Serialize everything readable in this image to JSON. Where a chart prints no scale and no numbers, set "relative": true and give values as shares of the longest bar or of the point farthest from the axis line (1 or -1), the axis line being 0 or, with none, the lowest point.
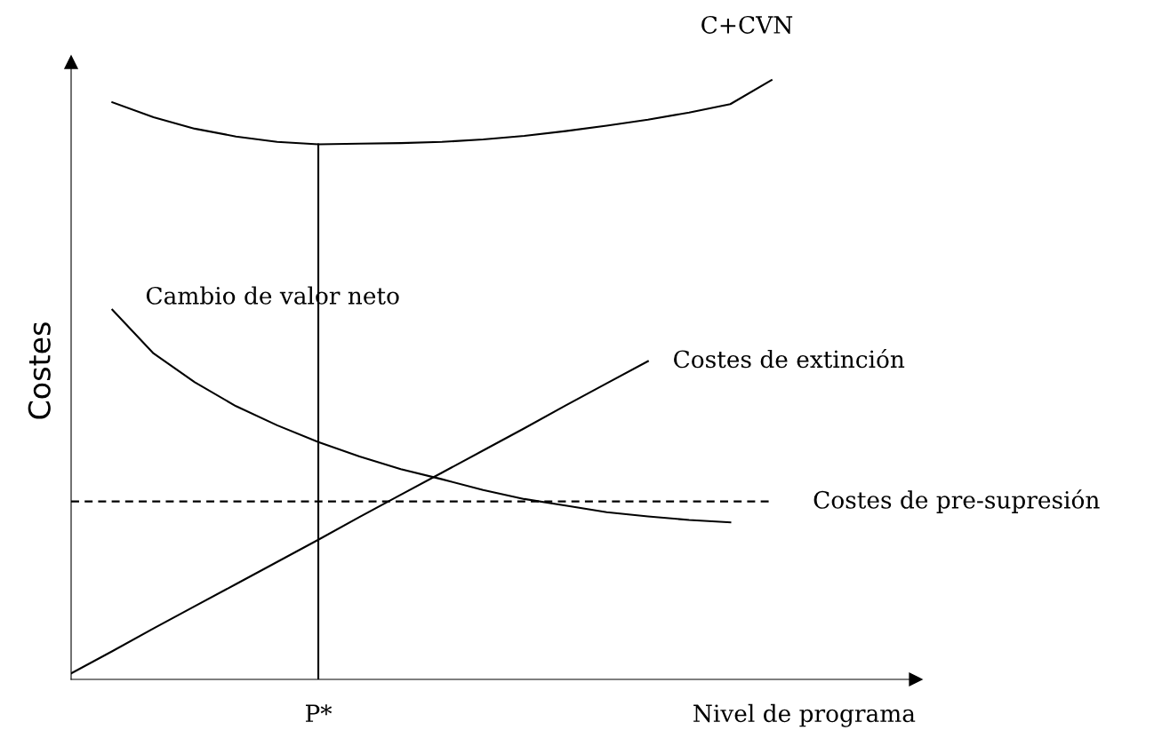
{
  "chart_data": {
    "type": "line",
    "relative": true,
    "xlabel": "Nivel de programa",
    "ylabel": "Costes",
    "categories": [
      null,
      null,
      null,
      null,
      null,
      null,
      null,
      null,
      null,
      null,
      null,
      null,
      null,
      null,
      null,
      null,
      null,
      null,
      null,
      null,
      null
    ],
    "series": [
      {
        "name": "C+CVN",
        "color": "#000000",
        "values": [
          null,
          0.963,
          0.938,
          0.919,
          0.906,
          0.897,
          0.893,
          0.894,
          0.895,
          0.897,
          0.901,
          0.907,
          0.915,
          0.924,
          0.934,
          0.946,
          0.96,
          1.0,
          null,
          null,
          null
        ]
      },
      {
        "name": "Cambio de valor neto",
        "color": "#000000",
        "values": [
          null,
          0.617,
          0.544,
          0.496,
          0.456,
          0.424,
          0.396,
          0.372,
          0.351,
          0.334,
          0.316,
          0.301,
          0.29,
          0.279,
          0.272,
          0.266,
          0.262,
          null,
          null,
          null,
          null
        ]
      },
      {
        "name": "Costes de extinción",
        "color": "#000000",
        "values": [
          0.01,
          0.047,
          0.085,
          0.122,
          0.159,
          0.196,
          0.233,
          0.271,
          0.308,
          0.345,
          0.382,
          0.419,
          0.457,
          0.494,
          0.531,
          null,
          null,
          null,
          null,
          null,
          null
        ]
      },
      {
        "name": "Costes de pre-supresión",
        "color": "#000000",
        "line_style": "dashed",
        "values": [
          0.297,
          0.297,
          0.297,
          0.297,
          0.297,
          0.297,
          0.297,
          0.297,
          0.297,
          0.297,
          0.297,
          0.297,
          0.297,
          0.297,
          0.297,
          0.297,
          0.297,
          0.297,
          null,
          null,
          null
        ]
      }
    ],
    "annotations": [
      "P*"
    ],
    "grid": false,
    "legend": false,
    "marker": "none"
  }
}
